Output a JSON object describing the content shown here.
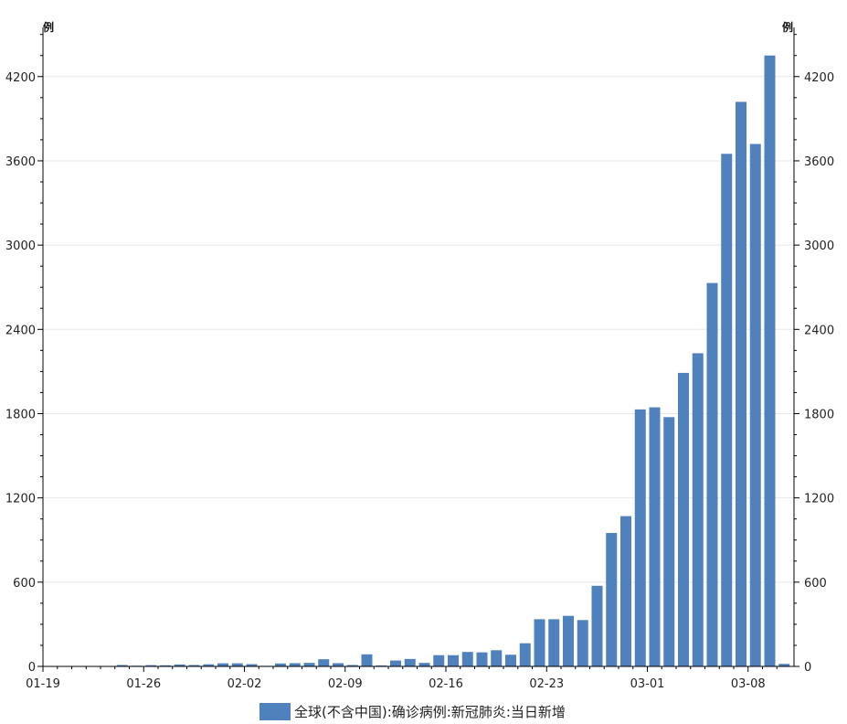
{
  "chart_data": {
    "type": "bar",
    "y_unit_left": "例",
    "y_unit_right": "例",
    "ylim": [
      0,
      4550
    ],
    "y_ticks": [
      0,
      600,
      1200,
      1800,
      2400,
      3000,
      3600,
      4200
    ],
    "y_tick_labels": [
      "0",
      "600",
      "1200",
      "1800",
      "2400",
      "3000",
      "3600",
      "4200"
    ],
    "x_tick_labels": [
      "01-19",
      "01-26",
      "02-02",
      "02-09",
      "02-16",
      "02-23",
      "03-01",
      "03-08"
    ],
    "grid": true,
    "legend_position": "bottom-center",
    "series": [
      {
        "name": "全球(不含中国):确诊病例:新冠肺炎:当日新增",
        "color": "#4f81bd",
        "categories": [
          "01-19",
          "01-20",
          "01-21",
          "01-22",
          "01-23",
          "01-24",
          "01-25",
          "01-26",
          "01-27",
          "01-28",
          "01-29",
          "01-30",
          "01-31",
          "02-01",
          "02-02",
          "02-03",
          "02-04",
          "02-05",
          "02-06",
          "02-07",
          "02-08",
          "02-09",
          "02-10",
          "02-11",
          "02-12",
          "02-13",
          "02-14",
          "02-15",
          "02-16",
          "02-17",
          "02-18",
          "02-19",
          "02-20",
          "02-21",
          "02-22",
          "02-23",
          "02-24",
          "02-25",
          "02-26",
          "02-27",
          "02-28",
          "02-29",
          "03-01",
          "03-02",
          "03-03",
          "03-04",
          "03-05",
          "03-06",
          "03-07",
          "03-08",
          "03-09",
          "03-10"
        ],
        "values": [
          1,
          1,
          2,
          2,
          1,
          10,
          5,
          9,
          8,
          14,
          10,
          15,
          22,
          22,
          16,
          4,
          21,
          23,
          25,
          51,
          23,
          10,
          86,
          7,
          42,
          53,
          25,
          80,
          80,
          103,
          100,
          115,
          83,
          165,
          336,
          336,
          360,
          330,
          574,
          950,
          1070,
          1830,
          1845,
          1775,
          2090,
          2230,
          2730,
          3650,
          4020,
          3720,
          4350,
          18
        ]
      }
    ]
  }
}
